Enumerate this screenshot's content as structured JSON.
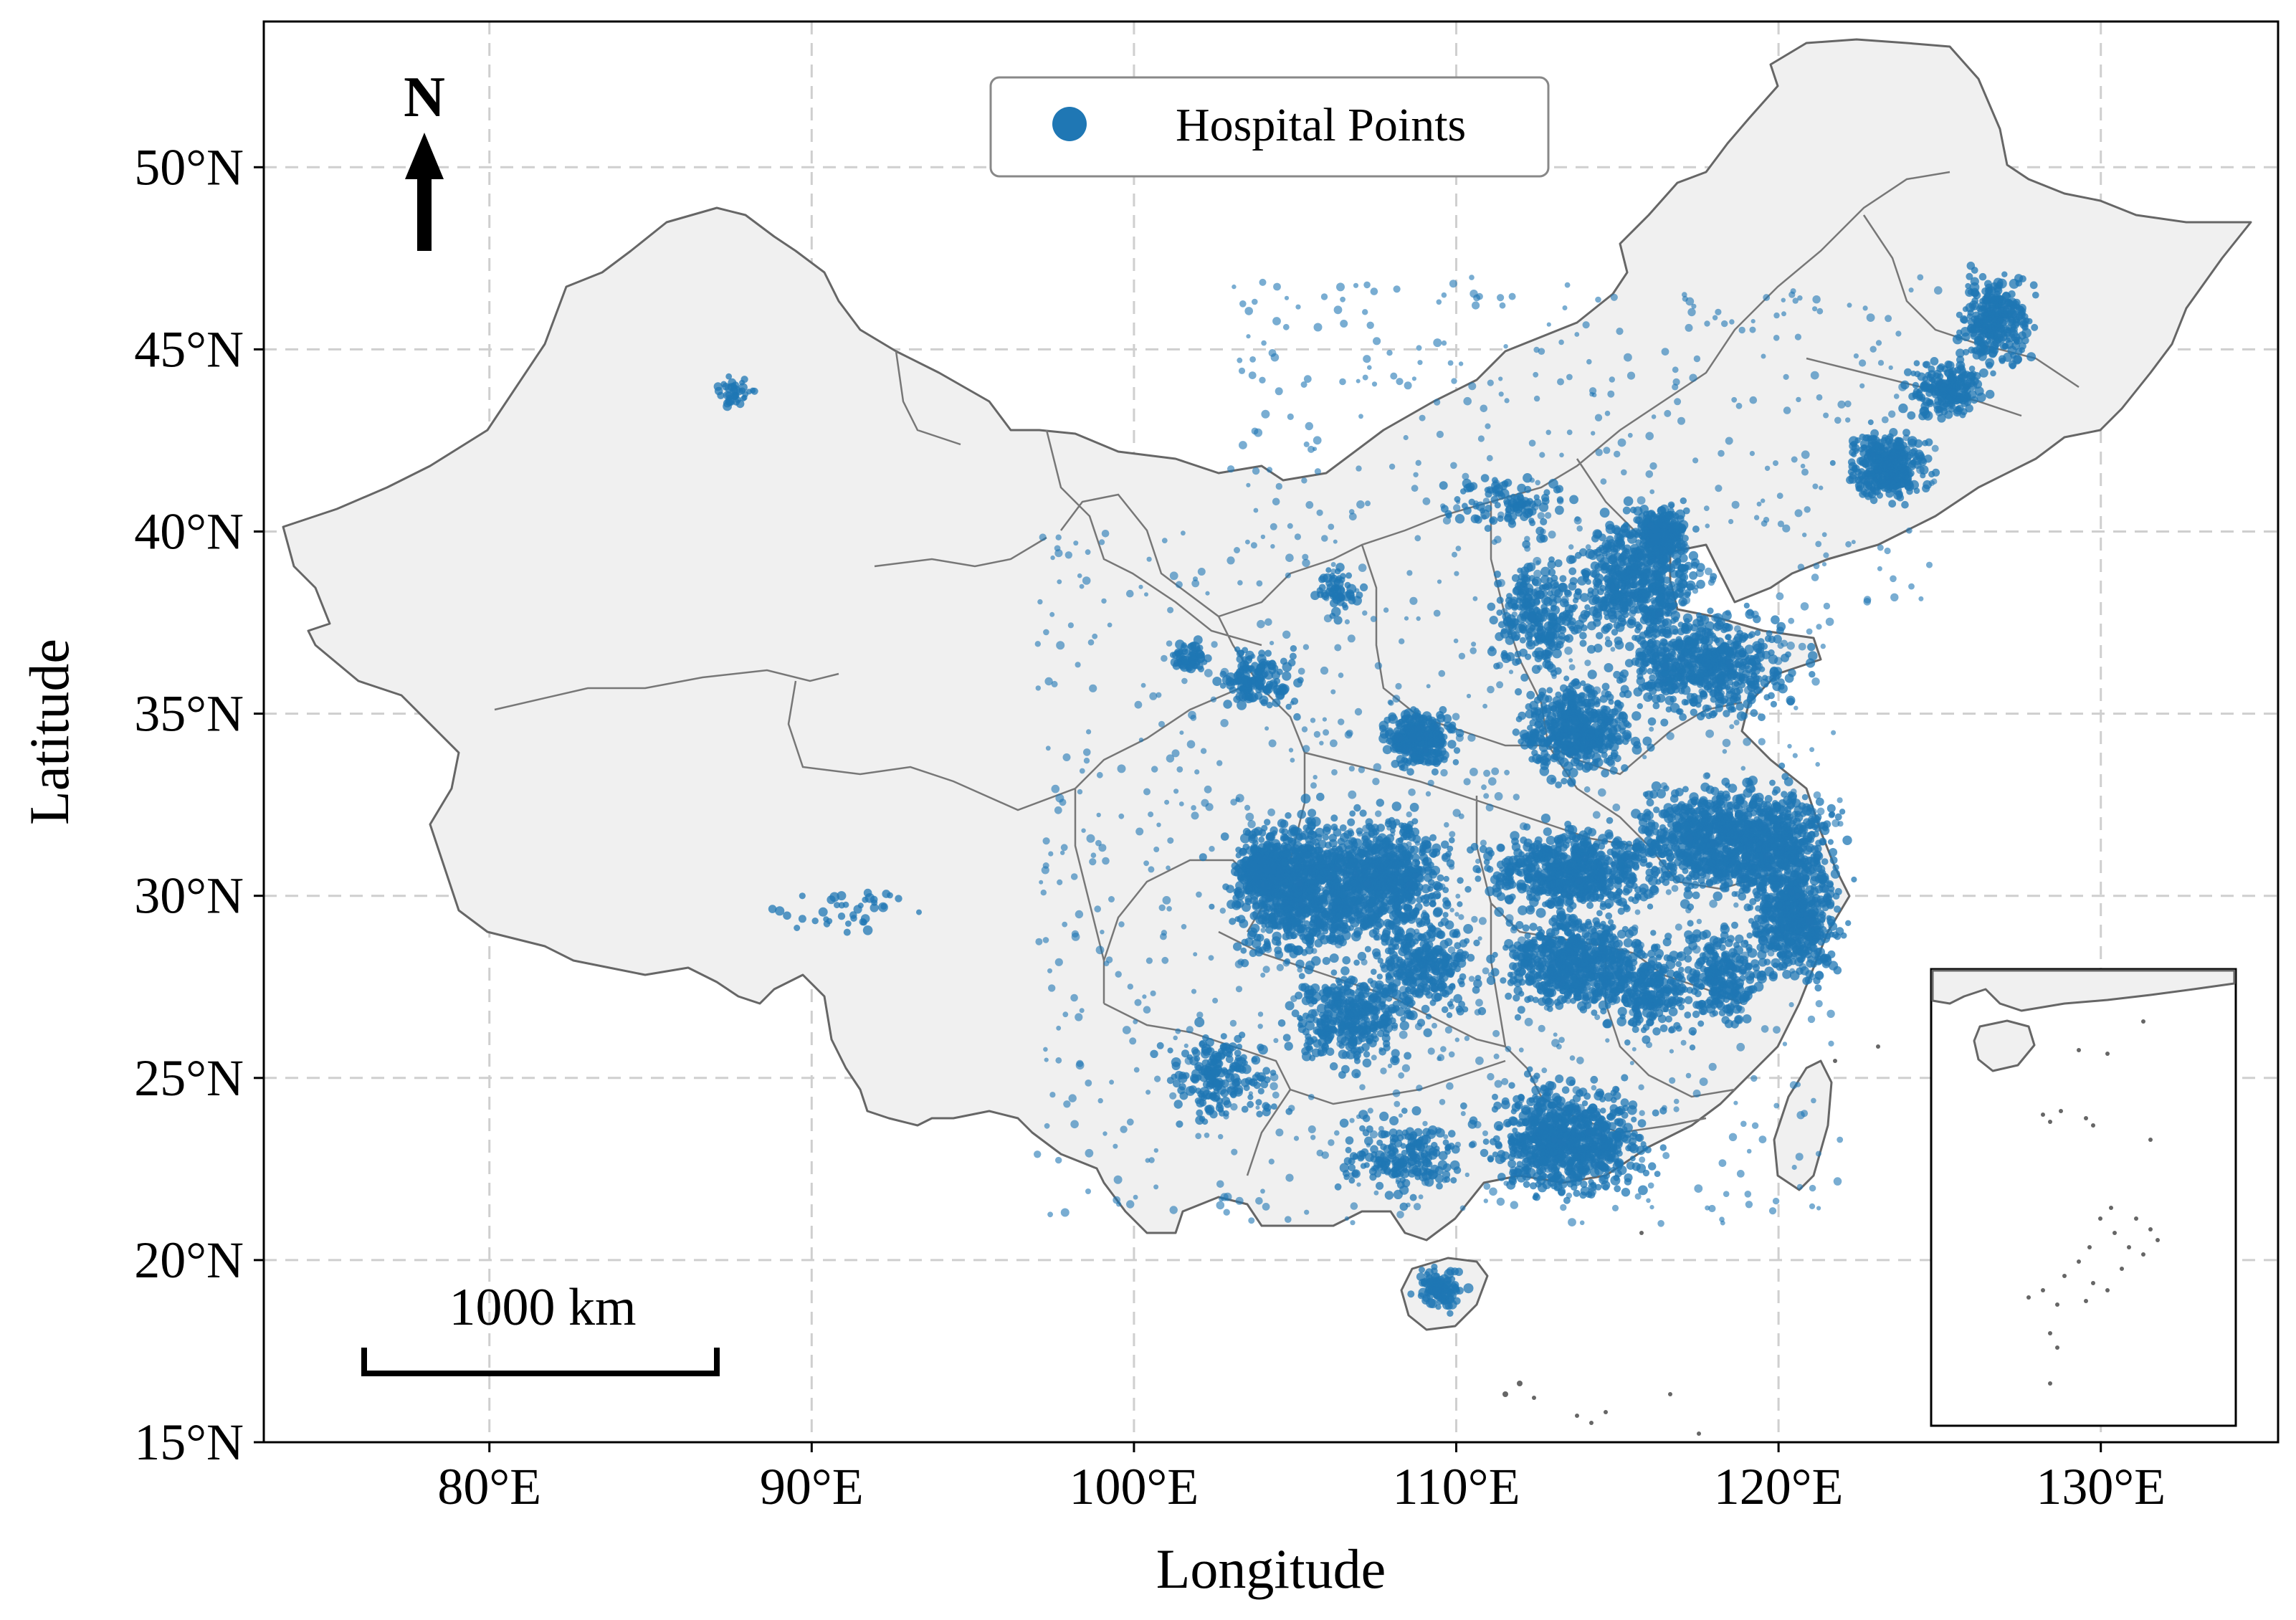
{
  "figure": {
    "xlabel": "Longitude",
    "ylabel": "Latitude",
    "xticks": [
      "80°E",
      "90°E",
      "100°E",
      "110°E",
      "120°E",
      "130°E"
    ],
    "yticks": [
      "50°N",
      "45°N",
      "40°N",
      "35°N",
      "30°N",
      "25°N",
      "20°N",
      "15°N"
    ],
    "legend": {
      "label": "Hospital Points",
      "color": "#1f77b4"
    },
    "north_arrow": {
      "label": "N"
    },
    "scale_bar": {
      "label": "1000 km"
    }
  },
  "chart_data": {
    "type": "scatter",
    "xlabel": "Longitude",
    "ylabel": "Latitude",
    "xlim": [
      73,
      135.5
    ],
    "ylim": [
      15,
      54
    ],
    "point_color": "#1f77b4",
    "land_color": "#f0f0f0",
    "border_color": "#666666",
    "grid": true,
    "legend_position": "top-center",
    "inset": "South China Sea islands, bottom-right",
    "clusters": [
      {
        "lon": 105.2,
        "lat": 30.2,
        "count": 900,
        "spread": [
          1.6,
          1.4
        ]
      },
      {
        "lon": 107.8,
        "lat": 30.5,
        "count": 700,
        "spread": [
          1.4,
          1.2
        ]
      },
      {
        "lon": 113.6,
        "lat": 28.2,
        "count": 650,
        "spread": [
          1.6,
          1.0
        ]
      },
      {
        "lon": 113.6,
        "lat": 30.7,
        "count": 650,
        "spread": [
          2.0,
          0.9
        ]
      },
      {
        "lon": 119.6,
        "lat": 31.5,
        "count": 750,
        "spread": [
          1.6,
          1.2
        ]
      },
      {
        "lon": 120.5,
        "lat": 29.4,
        "count": 500,
        "spread": [
          1.0,
          1.2
        ]
      },
      {
        "lon": 117.4,
        "lat": 31.6,
        "count": 450,
        "spread": [
          1.3,
          1.0
        ]
      },
      {
        "lon": 113.5,
        "lat": 23.3,
        "count": 800,
        "spread": [
          1.8,
          1.1
        ]
      },
      {
        "lon": 113.7,
        "lat": 34.6,
        "count": 500,
        "spread": [
          1.3,
          0.9
        ]
      },
      {
        "lon": 117.8,
        "lat": 36.3,
        "count": 600,
        "spread": [
          2.0,
          1.0
        ]
      },
      {
        "lon": 115.6,
        "lat": 38.7,
        "count": 550,
        "spread": [
          1.5,
          1.3
        ]
      },
      {
        "lon": 116.4,
        "lat": 39.9,
        "count": 300,
        "spread": [
          0.6,
          0.5
        ]
      },
      {
        "lon": 108.9,
        "lat": 34.3,
        "count": 300,
        "spread": [
          0.8,
          0.6
        ]
      },
      {
        "lon": 112.6,
        "lat": 37.6,
        "count": 250,
        "spread": [
          1.0,
          1.2
        ]
      },
      {
        "lon": 106.7,
        "lat": 26.7,
        "count": 350,
        "spread": [
          1.4,
          1.0
        ]
      },
      {
        "lon": 109.0,
        "lat": 28.0,
        "count": 300,
        "spread": [
          1.2,
          1.0
        ]
      },
      {
        "lon": 118.3,
        "lat": 27.8,
        "count": 250,
        "spread": [
          1.0,
          1.0
        ]
      },
      {
        "lon": 116.0,
        "lat": 27.4,
        "count": 250,
        "spread": [
          1.0,
          1.0
        ]
      },
      {
        "lon": 123.4,
        "lat": 41.8,
        "count": 350,
        "spread": [
          0.9,
          0.7
        ]
      },
      {
        "lon": 126.7,
        "lat": 45.8,
        "count": 300,
        "spread": [
          0.8,
          0.9
        ]
      },
      {
        "lon": 125.3,
        "lat": 43.9,
        "count": 200,
        "spread": [
          1.0,
          0.6
        ]
      },
      {
        "lon": 120.5,
        "lat": 24.0,
        "count": 0,
        "spread": [
          0,
          0
        ]
      },
      {
        "lon": 109.5,
        "lat": 19.2,
        "count": 120,
        "spread": [
          0.6,
          0.4
        ]
      },
      {
        "lon": 102.7,
        "lat": 25.0,
        "count": 200,
        "spread": [
          1.2,
          0.9
        ]
      },
      {
        "lon": 104.0,
        "lat": 30.7,
        "count": 300,
        "spread": [
          0.5,
          0.5
        ]
      },
      {
        "lon": 103.8,
        "lat": 36.0,
        "count": 150,
        "spread": [
          0.9,
          0.6
        ]
      },
      {
        "lon": 108.3,
        "lat": 22.8,
        "count": 200,
        "spread": [
          1.3,
          0.8
        ]
      },
      {
        "lon": 111.7,
        "lat": 40.8,
        "count": 100,
        "spread": [
          1.5,
          0.6
        ]
      },
      {
        "lon": 87.6,
        "lat": 43.8,
        "count": 40,
        "spread": [
          0.5,
          0.3
        ]
      },
      {
        "lon": 91.1,
        "lat": 29.6,
        "count": 40,
        "spread": [
          1.5,
          0.5
        ]
      },
      {
        "lon": 101.7,
        "lat": 36.6,
        "count": 60,
        "spread": [
          0.5,
          0.4
        ]
      },
      {
        "lon": 106.3,
        "lat": 38.4,
        "count": 60,
        "spread": [
          0.5,
          0.5
        ]
      }
    ]
  }
}
